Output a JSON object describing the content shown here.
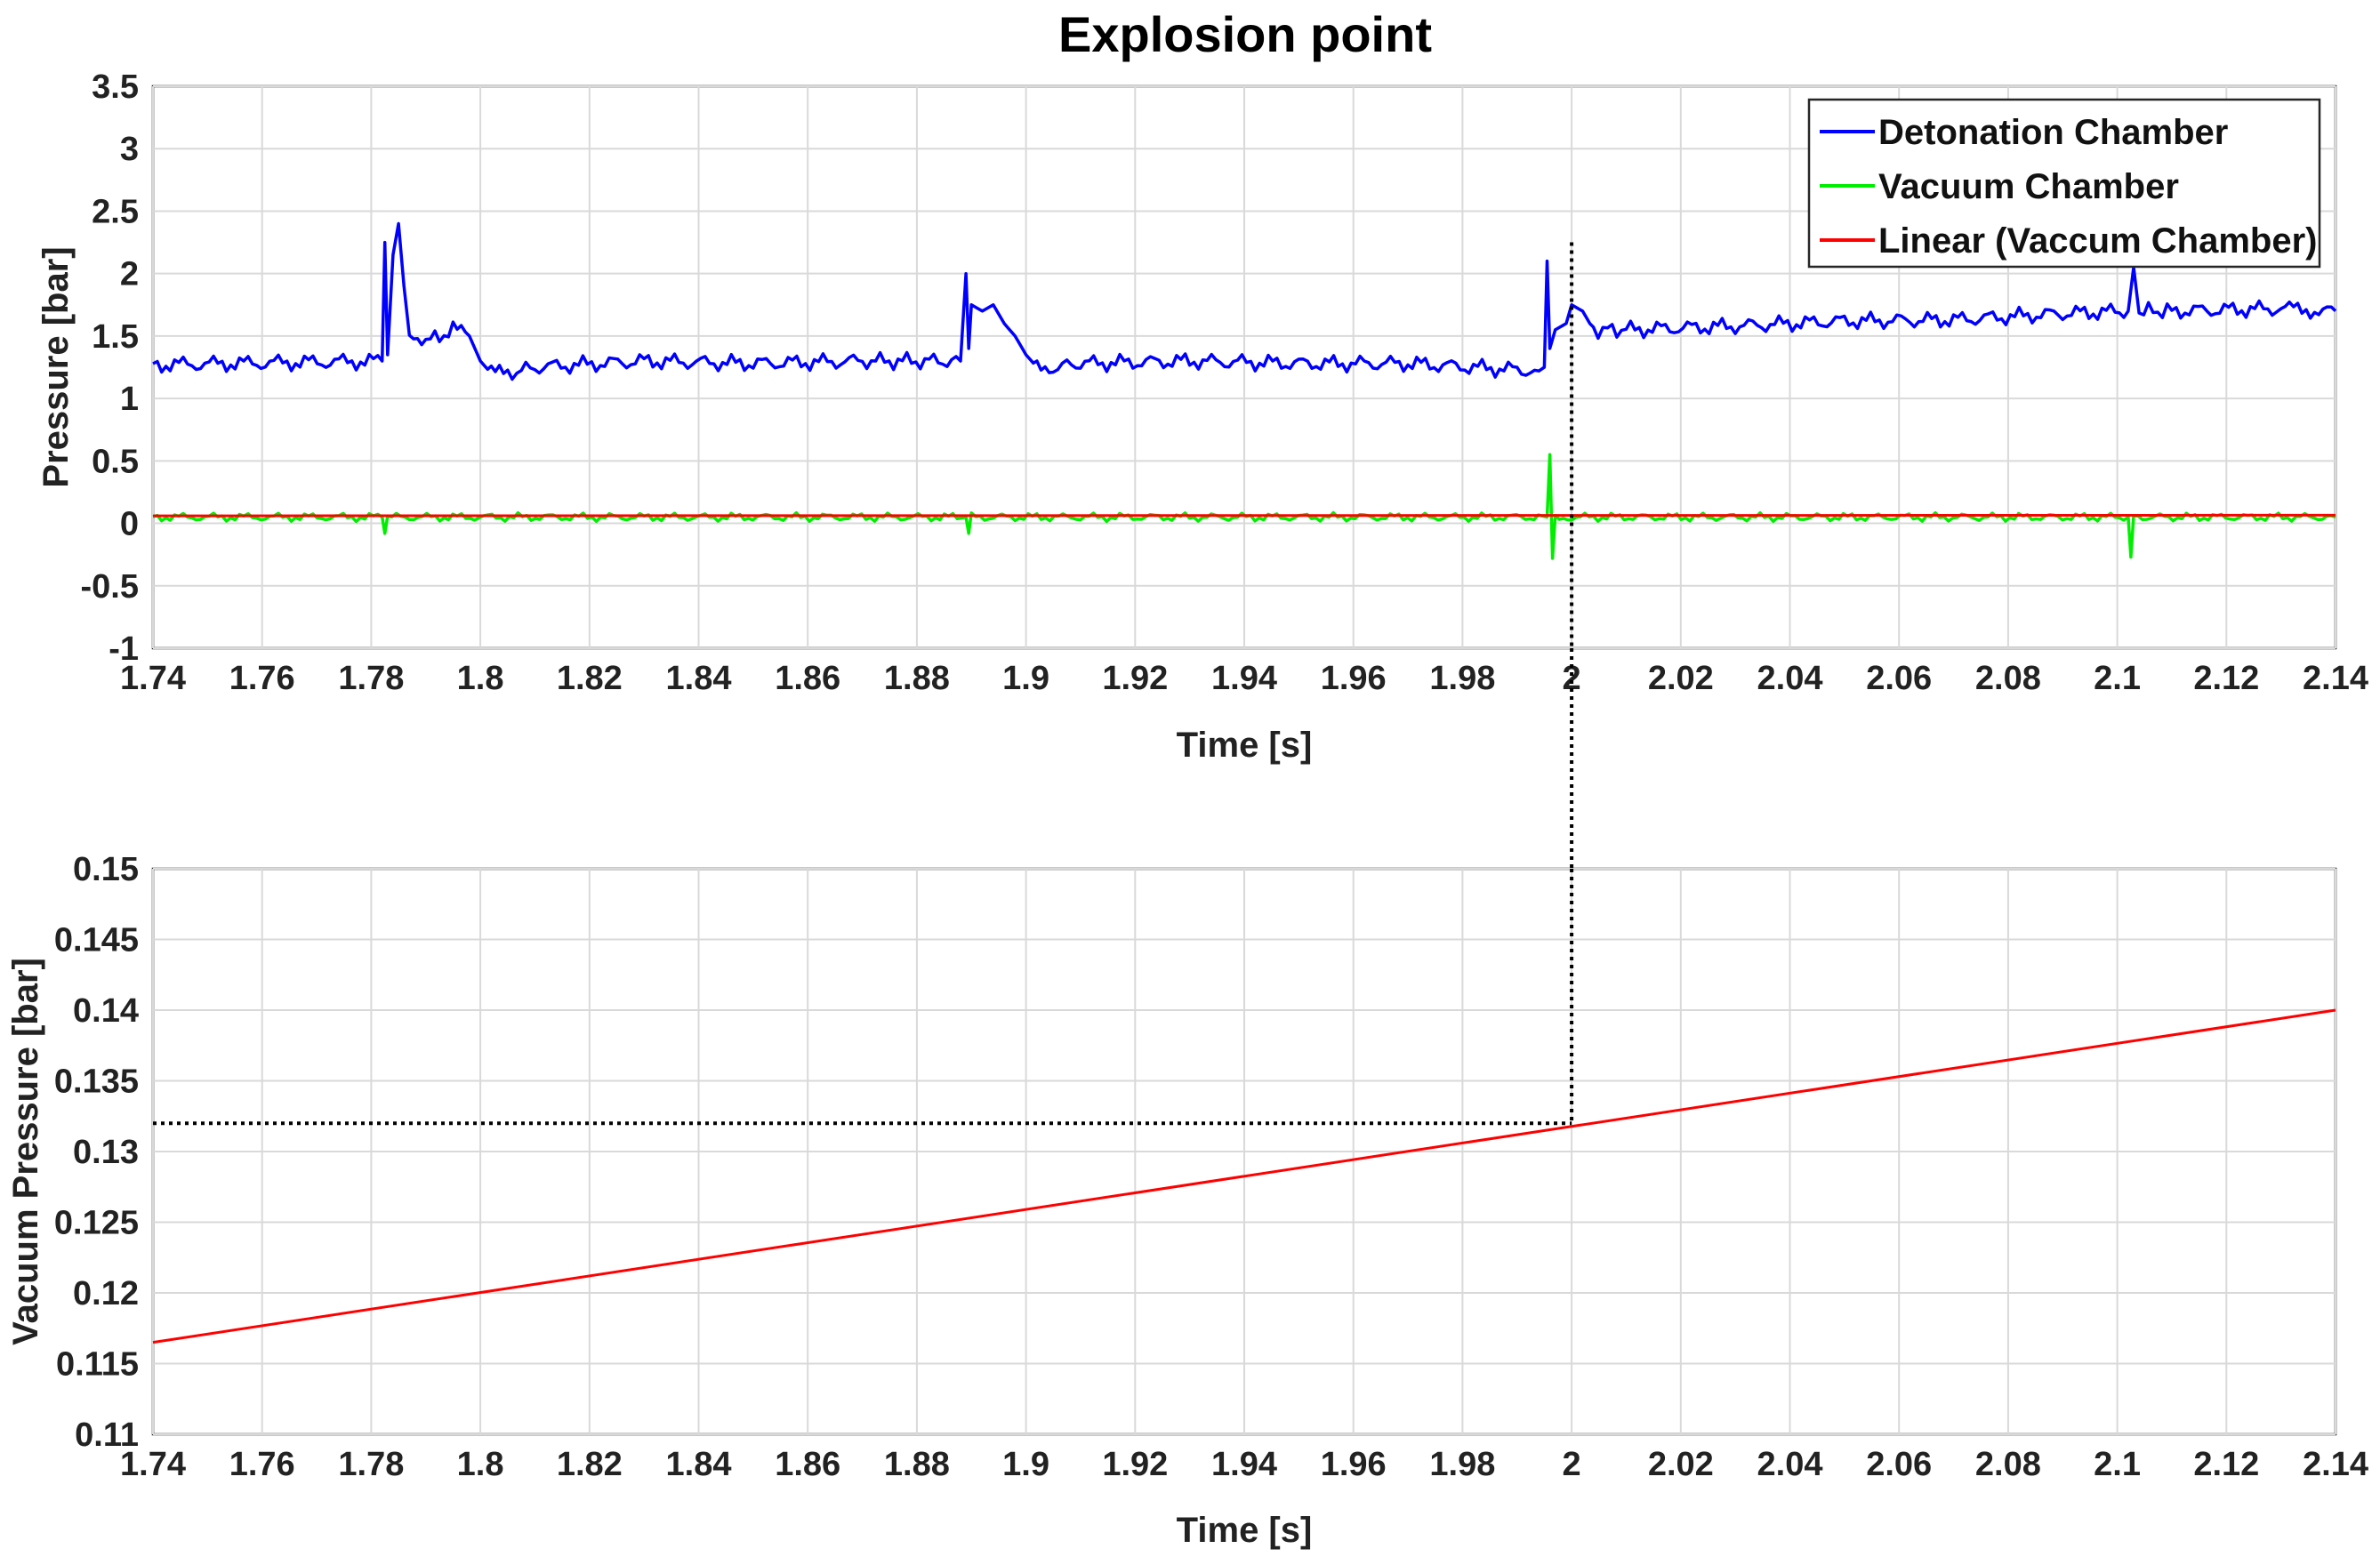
{
  "chart_data": [
    {
      "type": "line",
      "title": "Explosion point",
      "xlabel": "Time [s]",
      "ylabel": "Pressure [bar]",
      "xlim": [
        1.74,
        2.14
      ],
      "ylim": [
        -1,
        3.5
      ],
      "xticks": [
        "1.74",
        "1.76",
        "1.78",
        "1.8",
        "1.82",
        "1.84",
        "1.86",
        "1.88",
        "1.9",
        "1.92",
        "1.94",
        "1.96",
        "1.98",
        "2",
        "2.02",
        "2.04",
        "2.06",
        "2.08",
        "2.1",
        "2.12",
        "2.14"
      ],
      "yticks": [
        "-1",
        "-0.5",
        "0",
        "0.5",
        "1",
        "1.5",
        "2",
        "2.5",
        "3",
        "3.5"
      ],
      "grid": true,
      "legend_position": "top-right",
      "series": [
        {
          "name": "Detonation Chamber",
          "color": "#0000ff",
          "x": [
            1.74,
            1.782,
            1.7825,
            1.783,
            1.784,
            1.785,
            1.786,
            1.787,
            1.79,
            1.795,
            1.798,
            1.8,
            1.802,
            1.805,
            1.81,
            1.83,
            1.85,
            1.87,
            1.888,
            1.889,
            1.8895,
            1.89,
            1.892,
            1.894,
            1.896,
            1.898,
            1.9,
            1.902,
            1.905,
            1.91,
            1.93,
            1.95,
            1.97,
            1.994,
            1.995,
            1.9955,
            1.996,
            1.997,
            1.999,
            2.0,
            2.002,
            2.004,
            2.01,
            2.03,
            2.05,
            2.07,
            2.09,
            2.102,
            2.103,
            2.104,
            2.11,
            2.13,
            2.14
          ],
          "y": [
            1.27,
            1.3,
            2.25,
            1.35,
            2.15,
            2.4,
            1.9,
            1.55,
            1.45,
            1.55,
            1.5,
            1.3,
            1.2,
            1.2,
            1.25,
            1.3,
            1.28,
            1.3,
            1.3,
            2.0,
            1.4,
            1.75,
            1.7,
            1.75,
            1.6,
            1.5,
            1.35,
            1.25,
            1.25,
            1.28,
            1.3,
            1.28,
            1.28,
            1.22,
            1.25,
            2.1,
            1.4,
            1.55,
            1.6,
            1.75,
            1.7,
            1.55,
            1.55,
            1.58,
            1.62,
            1.63,
            1.68,
            1.7,
            2.05,
            1.7,
            1.7,
            1.72,
            1.7
          ]
        },
        {
          "name": "Vacuum Chamber",
          "color": "#00ee00",
          "x": [
            1.74,
            1.782,
            1.7825,
            1.783,
            1.889,
            1.8895,
            1.89,
            1.9955,
            1.996,
            1.9965,
            1.997,
            2.0,
            2.102,
            2.1025,
            2.103,
            2.14
          ],
          "y": [
            0.05,
            0.05,
            -0.08,
            0.05,
            0.05,
            -0.08,
            0.05,
            0.05,
            0.55,
            -0.28,
            0.05,
            0.05,
            0.05,
            -0.27,
            0.05,
            0.05
          ]
        },
        {
          "name": "Linear (Vaccum Chamber)",
          "color": "#ff0000",
          "x": [
            1.74,
            2.14
          ],
          "y": [
            0.06,
            0.065
          ]
        }
      ],
      "annotations": [
        {
          "type": "dotted-vertical",
          "x": 2.0,
          "y_from": 2.25,
          "description": "marks explosion point and continues into lower plot"
        }
      ]
    },
    {
      "type": "line",
      "title": "",
      "xlabel": "Time [s]",
      "ylabel": "Vacuum Pressure [bar]",
      "xlim": [
        1.74,
        2.14
      ],
      "ylim": [
        0.11,
        0.15
      ],
      "xticks": [
        "1.74",
        "1.76",
        "1.78",
        "1.8",
        "1.82",
        "1.84",
        "1.86",
        "1.88",
        "1.9",
        "1.92",
        "1.94",
        "1.96",
        "1.98",
        "2",
        "2.02",
        "2.04",
        "2.06",
        "2.08",
        "2.1",
        "2.12",
        "2.14"
      ],
      "yticks": [
        "0.11",
        "0.115",
        "0.12",
        "0.125",
        "0.13",
        "0.135",
        "0.14",
        "0.145",
        "0.15"
      ],
      "grid": true,
      "series": [
        {
          "color": "#ff0000",
          "x": [
            1.74,
            2.14
          ],
          "y": [
            0.1165,
            0.14
          ]
        }
      ],
      "annotations": [
        {
          "type": "dotted-vertical",
          "x": 2.0,
          "y_to": 0.132
        },
        {
          "type": "dotted-horizontal",
          "y": 0.132,
          "x_from": 1.74,
          "x_to": 2.0
        }
      ]
    }
  ]
}
